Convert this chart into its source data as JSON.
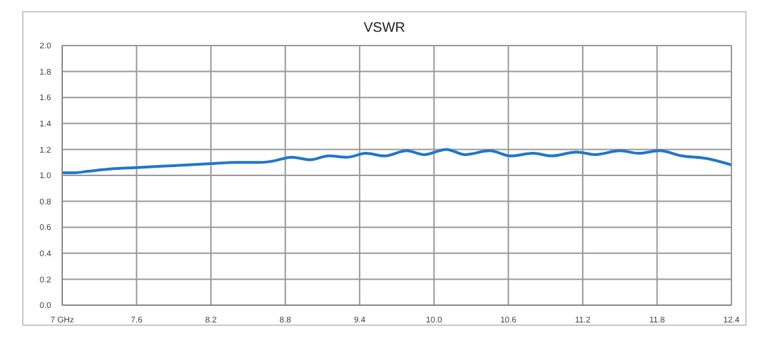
{
  "chart_data": {
    "type": "line",
    "title": "VSWR",
    "x": [
      7.0,
      7.1,
      7.2,
      7.4,
      7.6,
      7.8,
      8.0,
      8.2,
      8.4,
      8.6,
      8.7,
      8.85,
      9.0,
      9.15,
      9.3,
      9.45,
      9.6,
      9.78,
      9.92,
      10.1,
      10.25,
      10.45,
      10.62,
      10.8,
      10.95,
      11.15,
      11.3,
      11.5,
      11.65,
      11.82,
      12.0,
      12.2,
      12.4
    ],
    "series": [
      {
        "color": "#1f77c8",
        "values": [
          1.02,
          1.02,
          1.03,
          1.05,
          1.06,
          1.07,
          1.08,
          1.09,
          1.1,
          1.1,
          1.11,
          1.14,
          1.12,
          1.15,
          1.14,
          1.17,
          1.15,
          1.19,
          1.16,
          1.2,
          1.16,
          1.19,
          1.15,
          1.17,
          1.15,
          1.18,
          1.16,
          1.19,
          1.17,
          1.19,
          1.15,
          1.13,
          1.08
        ]
      }
    ],
    "xlim": [
      7,
      12.4
    ],
    "xticks": [
      {
        "value": 7,
        "label": "7 GHz"
      },
      7.6,
      8.2,
      8.8,
      9.4,
      {
        "value": 10,
        "label": "10.0"
      },
      10.6,
      11.2,
      11.8,
      12.4
    ],
    "ylim": [
      0,
      2
    ],
    "yticks": [
      {
        "value": 0,
        "label": "0.0"
      },
      0.2,
      0.4,
      0.6,
      0.8,
      {
        "value": 1,
        "label": "1.0"
      },
      1.2,
      1.4,
      1.6,
      1.8,
      {
        "value": 2,
        "label": "2.0"
      }
    ],
    "grid": true,
    "legend": false,
    "marker": "none",
    "line_style": "solid"
  }
}
